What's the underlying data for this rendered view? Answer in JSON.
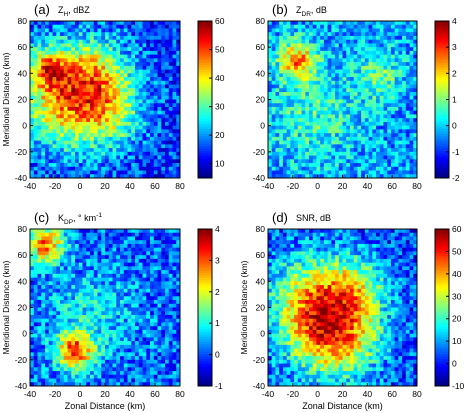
{
  "panels": [
    {
      "label": "(a)",
      "quantity": "Z",
      "quantity_sub": "H",
      "unit": ", dBZ",
      "colorbar": {
        "ticks": [
          "60",
          "50",
          "40",
          "30",
          "20",
          "10"
        ],
        "min": 5,
        "max": 60
      },
      "ylabel": "Meridional Distance (km)",
      "xlabel": "",
      "show_xlabel": false,
      "show_ylabel": true
    },
    {
      "label": "(b)",
      "quantity": "Z",
      "quantity_sub": "DR",
      "unit": ", dB",
      "colorbar": {
        "ticks": [
          "4",
          "3",
          "2",
          "1",
          "0",
          "-1",
          "-2"
        ],
        "min": -2,
        "max": 4
      },
      "ylabel": "",
      "xlabel": "",
      "show_xlabel": false,
      "show_ylabel": false
    },
    {
      "label": "(c)",
      "quantity": "K",
      "quantity_sub": "DP",
      "unit": ", ° km",
      "unit_sup": "-1",
      "colorbar": {
        "ticks": [
          "4",
          "3",
          "2",
          "1",
          "0",
          "-1"
        ],
        "min": -1,
        "max": 4
      },
      "ylabel": "Meridional Distance (km)",
      "xlabel": "Zonal Distance (km)",
      "show_xlabel": true,
      "show_ylabel": true
    },
    {
      "label": "(d)",
      "quantity": "SNR",
      "quantity_sub": "",
      "unit": ", dB",
      "colorbar": {
        "ticks": [
          "60",
          "50",
          "40",
          "30",
          "20",
          "10",
          "0",
          "-10"
        ],
        "min": -10,
        "max": 60
      },
      "ylabel": "Meridional Distance (km)",
      "xlabel": "Zonal Distance (km)",
      "show_xlabel": true,
      "show_ylabel": true
    }
  ],
  "chart_data": [
    {
      "type": "heatmap",
      "title": "(a) ZH, dBZ",
      "xlabel": "",
      "ylabel": "Meridional Distance (km)",
      "xlim": [
        -40,
        80
      ],
      "ylim": [
        -40,
        80
      ],
      "xticks": [
        "-40",
        "-20",
        "0",
        "20",
        "40",
        "60",
        "80"
      ],
      "yticks": [
        "80",
        "60",
        "40",
        "20",
        "0",
        "-20",
        "-40"
      ],
      "colorbar_range": [
        5,
        60
      ]
    },
    {
      "type": "heatmap",
      "title": "(b) ZDR, dB",
      "xlabel": "",
      "ylabel": "",
      "xlim": [
        -40,
        80
      ],
      "ylim": [
        -40,
        80
      ],
      "xticks": [
        "-40",
        "-20",
        "0",
        "20",
        "40",
        "60",
        "80"
      ],
      "yticks": [
        "80",
        "60",
        "40",
        "20",
        "0",
        "-20",
        "-40"
      ],
      "colorbar_range": [
        -2,
        4
      ]
    },
    {
      "type": "heatmap",
      "title": "(c) KDP, ° km-1",
      "xlabel": "Zonal Distance (km)",
      "ylabel": "Meridional Distance (km)",
      "xlim": [
        -40,
        80
      ],
      "ylim": [
        -40,
        80
      ],
      "xticks": [
        "-40",
        "-20",
        "0",
        "20",
        "40",
        "60",
        "80"
      ],
      "yticks": [
        "80",
        "60",
        "40",
        "20",
        "0",
        "-20",
        "-40"
      ],
      "colorbar_range": [
        -1,
        4
      ]
    },
    {
      "type": "heatmap",
      "title": "(d) SNR, dB",
      "xlabel": "Zonal Distance (km)",
      "ylabel": "Meridional Distance (km)",
      "xlim": [
        -40,
        80
      ],
      "ylim": [
        -40,
        80
      ],
      "xticks": [
        "-40",
        "-20",
        "0",
        "20",
        "40",
        "60",
        "80"
      ],
      "yticks": [
        "80",
        "60",
        "40",
        "20",
        "0",
        "-20",
        "-40"
      ],
      "colorbar_range": [
        -10,
        60
      ]
    }
  ]
}
